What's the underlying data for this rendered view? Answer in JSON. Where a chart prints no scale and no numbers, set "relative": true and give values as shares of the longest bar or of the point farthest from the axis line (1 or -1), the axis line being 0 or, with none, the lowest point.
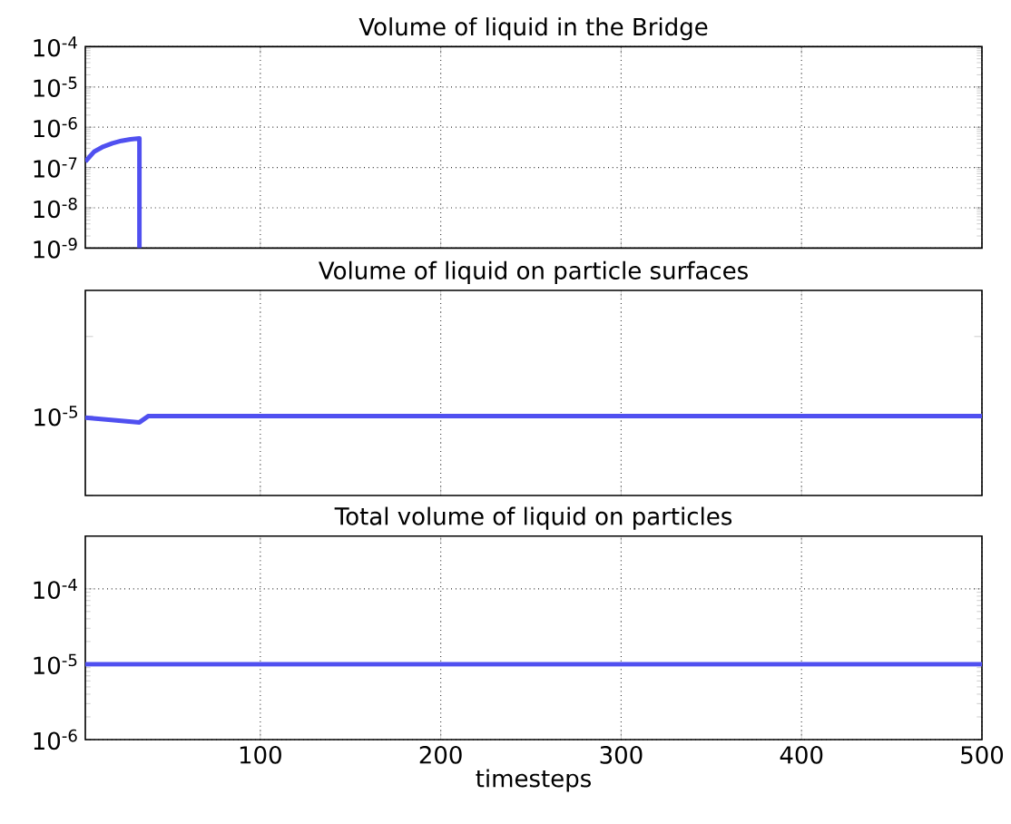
{
  "chart_data": [
    {
      "type": "line",
      "title": "Volume of liquid in the Bridge",
      "log": "y",
      "grid": true,
      "tick_labels": "y",
      "xlim": [
        3,
        500
      ],
      "xticks": [
        100,
        200,
        300,
        400,
        500
      ],
      "ylim": [
        1e-09,
        0.0001
      ],
      "yticks": [
        {
          "value": 1e-09,
          "label": "10$^{-9}$"
        },
        {
          "value": 1e-08,
          "label": "10$^{-8}$"
        },
        {
          "value": 1e-07,
          "label": "10$^{-7}$"
        },
        {
          "value": 1e-06,
          "label": "10$^{-6}$"
        },
        {
          "value": 1e-05,
          "label": "10$^{-5}$"
        },
        {
          "value": 0.0001,
          "label": "10$^{-4}$"
        }
      ],
      "series": [
        {
          "color": "#5050f0",
          "x": [
            3,
            8,
            13,
            18,
            23,
            28,
            33,
            33
          ],
          "values": [
            1.4e-07,
            2.5e-07,
            3.3e-07,
            4e-07,
            4.6e-07,
            5e-07,
            5.3e-07,
            1e-09
          ]
        }
      ]
    },
    {
      "type": "line",
      "title": "Volume of liquid on particle surfaces",
      "relative": true,
      "grid": "x",
      "tick_labels": false,
      "xlim": [
        3,
        500
      ],
      "xticks": [
        100,
        200,
        300,
        400,
        500
      ],
      "annotations": [
        "10$^{-5}$"
      ],
      "series": [
        {
          "color": "#5050f0",
          "x": [
            3,
            33,
            38,
            500
          ],
          "values": [
            0.98,
            0.92,
            1,
            1
          ]
        }
      ]
    },
    {
      "type": "line",
      "title": "Total volume of liquid on particles",
      "xlabel": "timesteps",
      "log": "y",
      "grid": true,
      "xlim": [
        3,
        500
      ],
      "xticks": [
        100,
        200,
        300,
        400,
        500
      ],
      "ylim": [
        1e-06,
        0.0005
      ],
      "yticks": [
        {
          "value": 1e-06,
          "label": "10$^{-6}$"
        },
        {
          "value": 1e-05,
          "label": "10$^{-5}$"
        },
        {
          "value": 0.0001,
          "label": "10$^{-4}$"
        }
      ],
      "series": [
        {
          "color": "#5050f0",
          "x": [
            3,
            500
          ],
          "values": [
            1e-05,
            1e-05
          ]
        }
      ]
    }
  ]
}
